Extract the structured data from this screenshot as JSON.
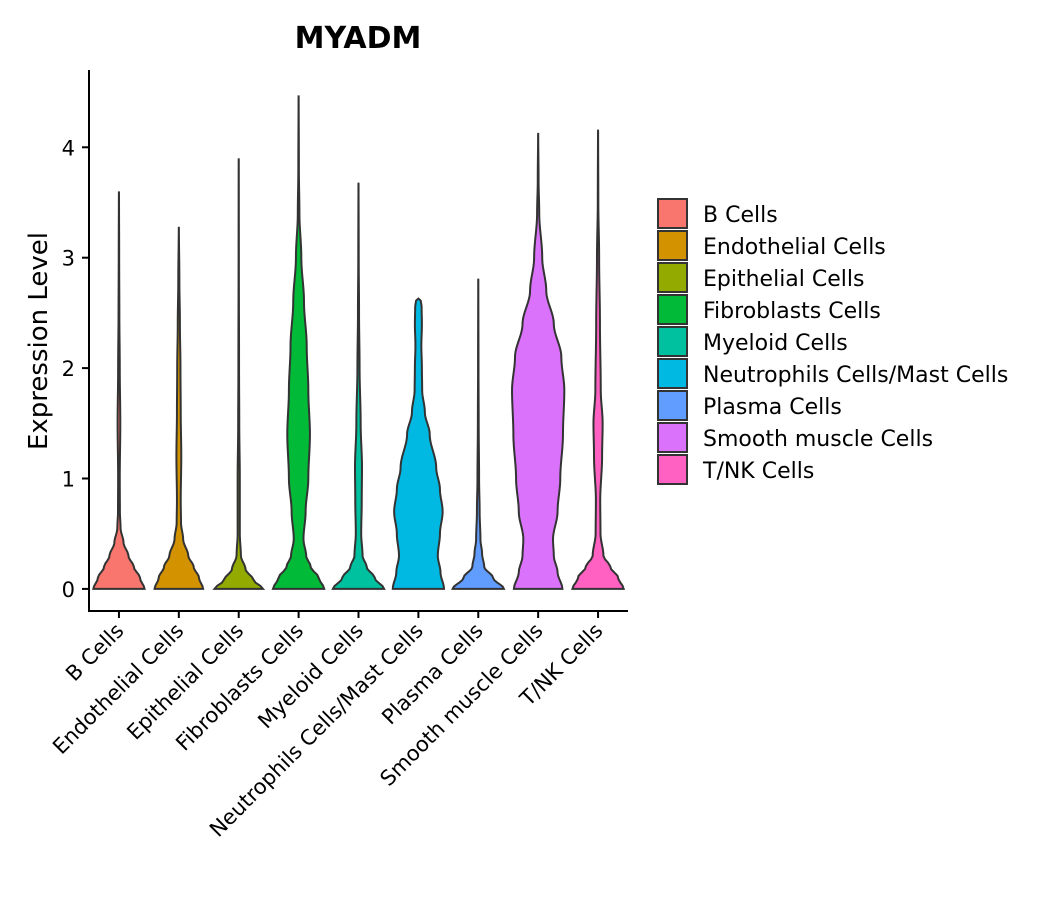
{
  "chart_data": {
    "type": "violin",
    "title": "MYADM",
    "xlabel": "",
    "ylabel": "Expression Level",
    "ylim": [
      -0.2,
      4.7
    ],
    "yticks": [
      0,
      1,
      2,
      3,
      4
    ],
    "ytick_labels": [
      "0",
      "1",
      "2",
      "3",
      "4"
    ],
    "legend_position": "right",
    "grid": false,
    "categories": [
      "B Cells",
      "Endothelial Cells",
      "Epithelial Cells",
      "Fibroblasts Cells",
      "Myeloid Cells",
      "Neutrophils Cells/Mast Cells",
      "Plasma Cells",
      "Smooth muscle Cells",
      "T/NK Cells"
    ],
    "colors": [
      "#F8766D",
      "#D39200",
      "#93AA00",
      "#00BA38",
      "#00C19F",
      "#00B9E3",
      "#619CFF",
      "#DB72FB",
      "#FF61C3"
    ],
    "series": [
      {
        "name": "B Cells",
        "max": 3.6,
        "density": [
          [
            0,
            0.95
          ],
          [
            0.1,
            0.78
          ],
          [
            0.2,
            0.55
          ],
          [
            0.3,
            0.35
          ],
          [
            0.42,
            0.17
          ],
          [
            0.55,
            0.06
          ],
          [
            0.7,
            0.035
          ],
          [
            1.0,
            0.03
          ],
          [
            1.5,
            0.05
          ],
          [
            2.0,
            0.03
          ],
          [
            2.5,
            0.015
          ],
          [
            3.0,
            0.008
          ],
          [
            3.6,
            0.002
          ]
        ]
      },
      {
        "name": "Endothelial Cells",
        "max": 3.28,
        "density": [
          [
            0,
            0.9
          ],
          [
            0.1,
            0.75
          ],
          [
            0.2,
            0.55
          ],
          [
            0.3,
            0.35
          ],
          [
            0.45,
            0.16
          ],
          [
            0.6,
            0.08
          ],
          [
            0.8,
            0.07
          ],
          [
            1.2,
            0.09
          ],
          [
            1.6,
            0.07
          ],
          [
            2.0,
            0.06
          ],
          [
            2.4,
            0.04
          ],
          [
            2.8,
            0.02
          ],
          [
            3.28,
            0.002
          ]
        ]
      },
      {
        "name": "Epithelial Cells",
        "max": 3.9,
        "density": [
          [
            0,
            0.9
          ],
          [
            0.08,
            0.55
          ],
          [
            0.18,
            0.25
          ],
          [
            0.3,
            0.08
          ],
          [
            0.5,
            0.04
          ],
          [
            1.0,
            0.04
          ],
          [
            1.5,
            0.02
          ],
          [
            2.0,
            0.012
          ],
          [
            3.0,
            0.005
          ],
          [
            3.9,
            0.002
          ]
        ]
      },
      {
        "name": "Fibroblasts Cells",
        "max": 4.47,
        "density": [
          [
            0,
            0.95
          ],
          [
            0.1,
            0.75
          ],
          [
            0.2,
            0.45
          ],
          [
            0.3,
            0.28
          ],
          [
            0.45,
            0.18
          ],
          [
            0.7,
            0.26
          ],
          [
            1.0,
            0.36
          ],
          [
            1.4,
            0.42
          ],
          [
            1.8,
            0.36
          ],
          [
            2.2,
            0.3
          ],
          [
            2.6,
            0.2
          ],
          [
            3.0,
            0.1
          ],
          [
            3.4,
            0.03
          ],
          [
            3.8,
            0.01
          ],
          [
            4.47,
            0.002
          ]
        ]
      },
      {
        "name": "Myeloid Cells",
        "max": 3.68,
        "density": [
          [
            0,
            0.95
          ],
          [
            0.1,
            0.6
          ],
          [
            0.2,
            0.3
          ],
          [
            0.3,
            0.15
          ],
          [
            0.5,
            0.1
          ],
          [
            0.8,
            0.12
          ],
          [
            1.1,
            0.13
          ],
          [
            1.5,
            0.08
          ],
          [
            2.0,
            0.04
          ],
          [
            2.5,
            0.02
          ],
          [
            3.0,
            0.008
          ],
          [
            3.68,
            0.002
          ]
        ]
      },
      {
        "name": "Neutrophils Cells/Mast Cells",
        "max": 2.63,
        "density": [
          [
            0,
            0.95
          ],
          [
            0.15,
            0.82
          ],
          [
            0.3,
            0.72
          ],
          [
            0.5,
            0.8
          ],
          [
            0.7,
            0.9
          ],
          [
            0.9,
            0.8
          ],
          [
            1.1,
            0.66
          ],
          [
            1.4,
            0.42
          ],
          [
            1.6,
            0.24
          ],
          [
            1.8,
            0.14
          ],
          [
            2.0,
            0.13
          ],
          [
            2.2,
            0.11
          ],
          [
            2.4,
            0.13
          ],
          [
            2.55,
            0.12
          ],
          [
            2.63,
            0.08
          ]
        ]
      },
      {
        "name": "Plasma Cells",
        "max": 2.81,
        "density": [
          [
            0,
            0.95
          ],
          [
            0.1,
            0.55
          ],
          [
            0.2,
            0.22
          ],
          [
            0.32,
            0.14
          ],
          [
            0.45,
            0.08
          ],
          [
            0.7,
            0.05
          ],
          [
            1.0,
            0.03
          ],
          [
            1.5,
            0.015
          ],
          [
            2.0,
            0.008
          ],
          [
            2.81,
            0.002
          ]
        ]
      },
      {
        "name": "Smooth muscle Cells",
        "max": 4.13,
        "density": [
          [
            0,
            0.9
          ],
          [
            0.15,
            0.72
          ],
          [
            0.3,
            0.58
          ],
          [
            0.45,
            0.55
          ],
          [
            0.7,
            0.72
          ],
          [
            1.0,
            0.82
          ],
          [
            1.4,
            0.92
          ],
          [
            1.8,
            0.97
          ],
          [
            2.1,
            0.86
          ],
          [
            2.4,
            0.58
          ],
          [
            2.7,
            0.3
          ],
          [
            3.0,
            0.15
          ],
          [
            3.4,
            0.04
          ],
          [
            3.7,
            0.015
          ],
          [
            4.13,
            0.002
          ]
        ]
      },
      {
        "name": "T/NK Cells",
        "max": 4.16,
        "density": [
          [
            0,
            0.95
          ],
          [
            0.1,
            0.75
          ],
          [
            0.2,
            0.45
          ],
          [
            0.3,
            0.2
          ],
          [
            0.5,
            0.09
          ],
          [
            0.8,
            0.08
          ],
          [
            1.2,
            0.15
          ],
          [
            1.5,
            0.17
          ],
          [
            1.8,
            0.1
          ],
          [
            2.4,
            0.07
          ],
          [
            3.0,
            0.04
          ],
          [
            3.5,
            0.01
          ],
          [
            4.16,
            0.002
          ]
        ]
      }
    ]
  }
}
